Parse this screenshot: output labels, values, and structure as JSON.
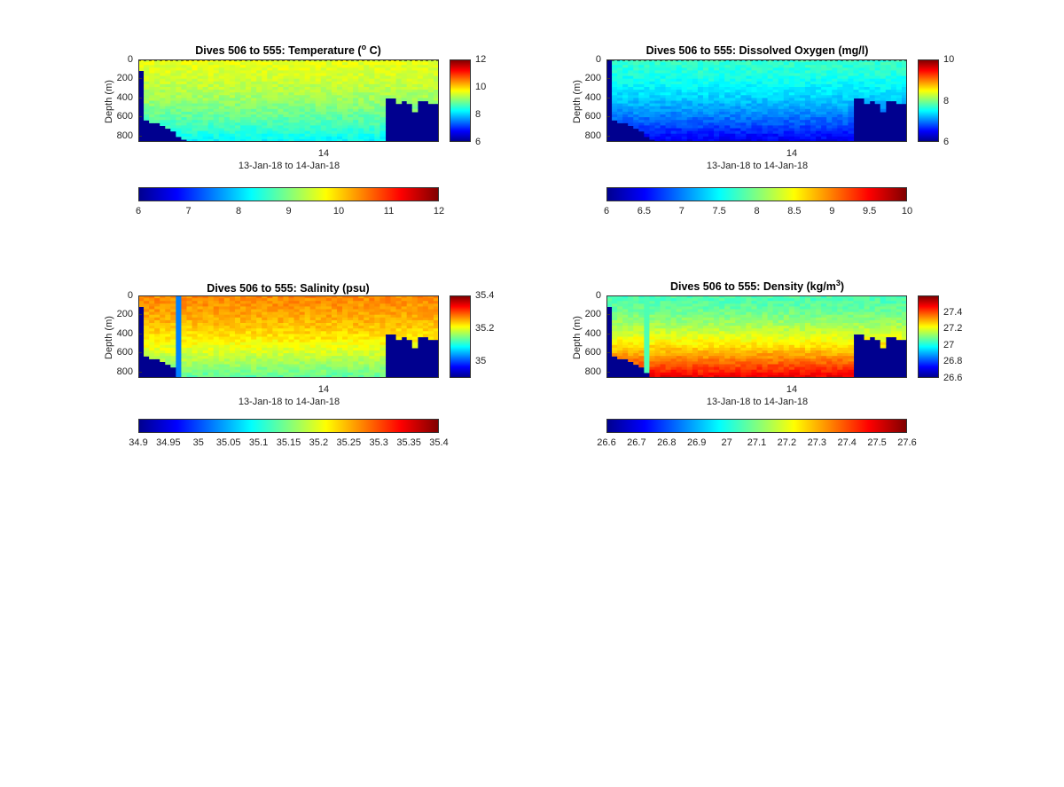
{
  "colormap": [
    "#00008f",
    "#0000ff",
    "#0080ff",
    "#00ffff",
    "#80ff80",
    "#ffff00",
    "#ff8000",
    "#ff0000",
    "#800000"
  ],
  "chart_data": [
    {
      "type": "heatmap",
      "title_main": "Dives 506 to 555: Temperature (",
      "title_sup": "o",
      "title_tail": " C)",
      "ylabel": "Depth (m)",
      "yticks": [
        "0",
        "200",
        "400",
        "600",
        "800"
      ],
      "ytick_values": [
        0,
        200,
        400,
        600,
        800
      ],
      "xtick": "14",
      "xlabel": "13-Jan-18 to 14-Jan-18",
      "vlim": [
        6,
        12
      ],
      "vbar_ticks": [
        "12",
        "10",
        "8",
        "6"
      ],
      "vbar_tick_values": [
        12,
        10,
        8,
        6
      ],
      "hbar_ticks": [
        "6",
        "7",
        "8",
        "9",
        "10",
        "11",
        "12"
      ],
      "hbar_tick_values": [
        6,
        7,
        8,
        9,
        10,
        11,
        12
      ],
      "ylim": [
        0,
        870
      ],
      "surface_dashed": true,
      "surface_value": 9.6,
      "deep_value": 8.2,
      "bottom_depths": [
        120,
        650,
        660,
        680,
        700,
        720,
        760,
        800,
        840,
        870,
        870,
        870,
        870,
        870,
        870,
        870,
        870,
        870,
        870,
        870,
        870,
        870,
        870,
        870,
        870,
        870,
        870,
        870,
        870,
        870,
        870,
        870,
        870,
        870,
        870,
        870,
        870,
        870,
        870,
        870,
        870,
        870,
        870,
        870,
        870,
        870,
        420,
        420,
        450,
        430,
        470,
        560,
        430,
        430,
        470,
        470
      ],
      "gaps": []
    },
    {
      "type": "heatmap",
      "title_main": "Dives 506 to 555: Dissolved Oxygen (mg/l)",
      "title_sup": "",
      "title_tail": "",
      "ylabel": "Depth (m)",
      "yticks": [
        "0",
        "200",
        "400",
        "600",
        "800"
      ],
      "ytick_values": [
        0,
        200,
        400,
        600,
        800
      ],
      "xtick": "14",
      "xlabel": "13-Jan-18 to 14-Jan-18",
      "vlim": [
        6,
        10
      ],
      "vbar_ticks": [
        "10",
        "8",
        "6"
      ],
      "vbar_tick_values": [
        10,
        8,
        6
      ],
      "hbar_ticks": [
        "6",
        "6.5",
        "7",
        "7.5",
        "8",
        "8.5",
        "9",
        "9.5",
        "10"
      ],
      "hbar_tick_values": [
        6,
        6.5,
        7,
        7.5,
        8,
        8.5,
        9,
        9.5,
        10
      ],
      "ylim": [
        0,
        870
      ],
      "surface_dashed": true,
      "surface_value": 7.7,
      "deep_value": 6.4,
      "bottom_depths": [
        0,
        650,
        660,
        680,
        700,
        720,
        760,
        800,
        840,
        870,
        870,
        870,
        870,
        870,
        870,
        870,
        870,
        870,
        870,
        870,
        870,
        870,
        870,
        870,
        870,
        870,
        870,
        870,
        870,
        870,
        870,
        870,
        870,
        870,
        870,
        870,
        870,
        870,
        870,
        870,
        870,
        870,
        870,
        870,
        870,
        870,
        420,
        420,
        450,
        430,
        470,
        560,
        430,
        430,
        470,
        470
      ],
      "gaps": []
    },
    {
      "type": "heatmap",
      "title_main": "Dives 506 to 555: Salinity (psu)",
      "title_sup": "",
      "title_tail": "",
      "ylabel": "Depth (m)",
      "yticks": [
        "0",
        "200",
        "400",
        "600",
        "800"
      ],
      "ytick_values": [
        0,
        200,
        400,
        600,
        800
      ],
      "xtick": "14",
      "xlabel": "13-Jan-18 to 14-Jan-18",
      "vlim": [
        34.9,
        35.4
      ],
      "vbar_ticks": [
        "35.4",
        "35.2",
        "35"
      ],
      "vbar_tick_values": [
        35.4,
        35.2,
        35
      ],
      "hbar_ticks": [
        "34.9",
        "34.95",
        "35",
        "35.05",
        "35.1",
        "35.15",
        "35.2",
        "35.25",
        "35.3",
        "35.35",
        "35.4"
      ],
      "hbar_tick_values": [
        34.9,
        34.95,
        35,
        35.05,
        35.1,
        35.15,
        35.2,
        35.25,
        35.3,
        35.35,
        35.4
      ],
      "ylim": [
        0,
        870
      ],
      "surface_dashed": false,
      "surface_value": 35.27,
      "deep_value": 35.13,
      "bottom_depths": [
        120,
        650,
        660,
        680,
        700,
        720,
        760,
        860,
        870,
        870,
        870,
        870,
        870,
        870,
        870,
        870,
        870,
        870,
        870,
        870,
        870,
        870,
        870,
        870,
        870,
        870,
        870,
        870,
        870,
        870,
        870,
        870,
        870,
        870,
        870,
        870,
        870,
        870,
        870,
        870,
        870,
        870,
        870,
        870,
        870,
        870,
        420,
        420,
        450,
        430,
        470,
        560,
        430,
        430,
        470,
        470
      ],
      "gaps": [
        7
      ]
    },
    {
      "type": "heatmap",
      "title_main": "Dives 506 to 555: Density (kg/m",
      "title_sup": "3",
      "title_tail": ")",
      "ylabel": "Depth (m)",
      "yticks": [
        "0",
        "200",
        "400",
        "600",
        "800"
      ],
      "ytick_values": [
        0,
        200,
        400,
        600,
        800
      ],
      "xtick": "14",
      "xlabel": "13-Jan-18 to 14-Jan-18",
      "vlim": [
        26.6,
        27.6
      ],
      "vbar_ticks": [
        "27.4",
        "27.2",
        "27",
        "26.8",
        "26.6"
      ],
      "vbar_tick_values": [
        27.4,
        27.2,
        27,
        26.8,
        26.6
      ],
      "hbar_ticks": [
        "26.6",
        "26.7",
        "26.8",
        "26.9",
        "27",
        "27.1",
        "27.2",
        "27.3",
        "27.4",
        "27.5",
        "27.6"
      ],
      "hbar_tick_values": [
        26.6,
        26.7,
        26.8,
        26.9,
        27,
        27.1,
        27.2,
        27.3,
        27.4,
        27.5,
        27.6
      ],
      "ylim": [
        0,
        870
      ],
      "surface_dashed": false,
      "surface_value": 27.05,
      "deep_value": 27.5,
      "bottom_depths": [
        120,
        650,
        660,
        680,
        700,
        720,
        760,
        800,
        870,
        870,
        870,
        870,
        870,
        870,
        870,
        870,
        870,
        870,
        870,
        870,
        870,
        870,
        870,
        870,
        870,
        870,
        870,
        870,
        870,
        870,
        870,
        870,
        870,
        870,
        870,
        870,
        870,
        870,
        870,
        870,
        870,
        870,
        870,
        870,
        870,
        870,
        420,
        420,
        450,
        430,
        470,
        560,
        430,
        430,
        470,
        470
      ],
      "gaps": [
        7
      ]
    }
  ]
}
